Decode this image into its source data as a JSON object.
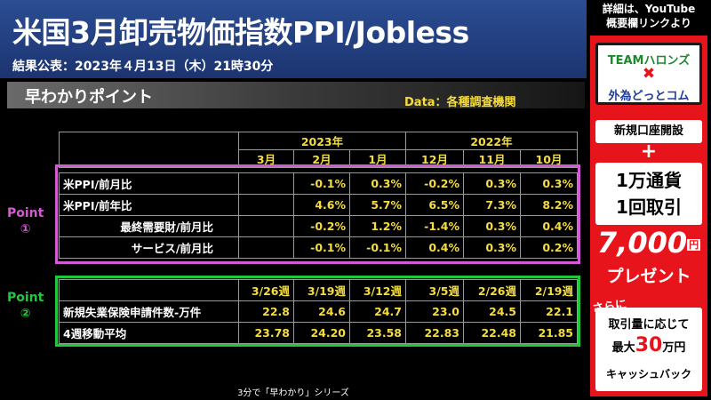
{
  "header": {
    "title": "米国3月卸売物価指数PPI/Jobless",
    "release": "結果公表：2023年４月13日（木）21時30分"
  },
  "section": {
    "title": "早わかりポイント",
    "data_source": "Data：各種調査機関"
  },
  "table": {
    "year_2023": "2023年",
    "year_2022": "2022年",
    "months": [
      "3月",
      "2月",
      "1月",
      "12月",
      "11月",
      "10月"
    ],
    "ppi_rows": [
      {
        "label": "米PPI/前月比",
        "values": [
          "",
          "-0.1%",
          "0.3%",
          "-0.2%",
          "0.3%",
          "0.3%"
        ]
      },
      {
        "label": "米PPI/前年比",
        "values": [
          "",
          "4.6%",
          "5.7%",
          "6.5%",
          "7.3%",
          "8.2%"
        ]
      },
      {
        "label": "最終需要財/前月比",
        "values": [
          "",
          "-0.2%",
          "1.2%",
          "-1.4%",
          "0.3%",
          "0.4%"
        ]
      },
      {
        "label": "サービス/前月比",
        "values": [
          "",
          "-0.1%",
          "-0.1%",
          "0.4%",
          "0.3%",
          "0.2%"
        ]
      }
    ],
    "weeks": [
      "3/26週",
      "3/19週",
      "3/12週",
      "3/5週",
      "2/26週",
      "2/19週"
    ],
    "jobless_rows": [
      {
        "label": "新規失業保険申請件数-万件",
        "values": [
          "22.8",
          "24.6",
          "24.7",
          "23.0",
          "24.5",
          "22.1"
        ]
      },
      {
        "label": "4週移動平均",
        "values": [
          "23.78",
          "24.20",
          "23.58",
          "22.83",
          "22.48",
          "21.85"
        ]
      }
    ]
  },
  "points": {
    "p1": {
      "word": "Point",
      "num": "①"
    },
    "p2": {
      "word": "Point",
      "num": "②"
    }
  },
  "footer": "3分で「早わかり」シリーズ",
  "promo": {
    "head_line1": "詳細は、YouTube",
    "head_line2": "概要欄リンクより",
    "brand_team": "TEAMハロンズ",
    "brand_x": "✖",
    "brand_sotozon": "外為どっとコム",
    "open_account": "新規口座開設",
    "plus": "+",
    "cond_line1": "1万通貨",
    "cond_line2": "1回取引",
    "prize_amount": "7,000",
    "prize_unit": "円",
    "prize_word": "プレゼント",
    "sarani": "さらに",
    "bonus_line1": "取引量に応じて",
    "bonus_pre": "最大",
    "bonus_big": "30",
    "bonus_post": "万円",
    "bonus_line3": "キャッシュバック"
  },
  "colors": {
    "header_bg": "#2b4d93",
    "value_yellow": "#f5dc40",
    "point1": "#d45ad3",
    "point2": "#20c83c",
    "promo_red": "#e8141c"
  }
}
